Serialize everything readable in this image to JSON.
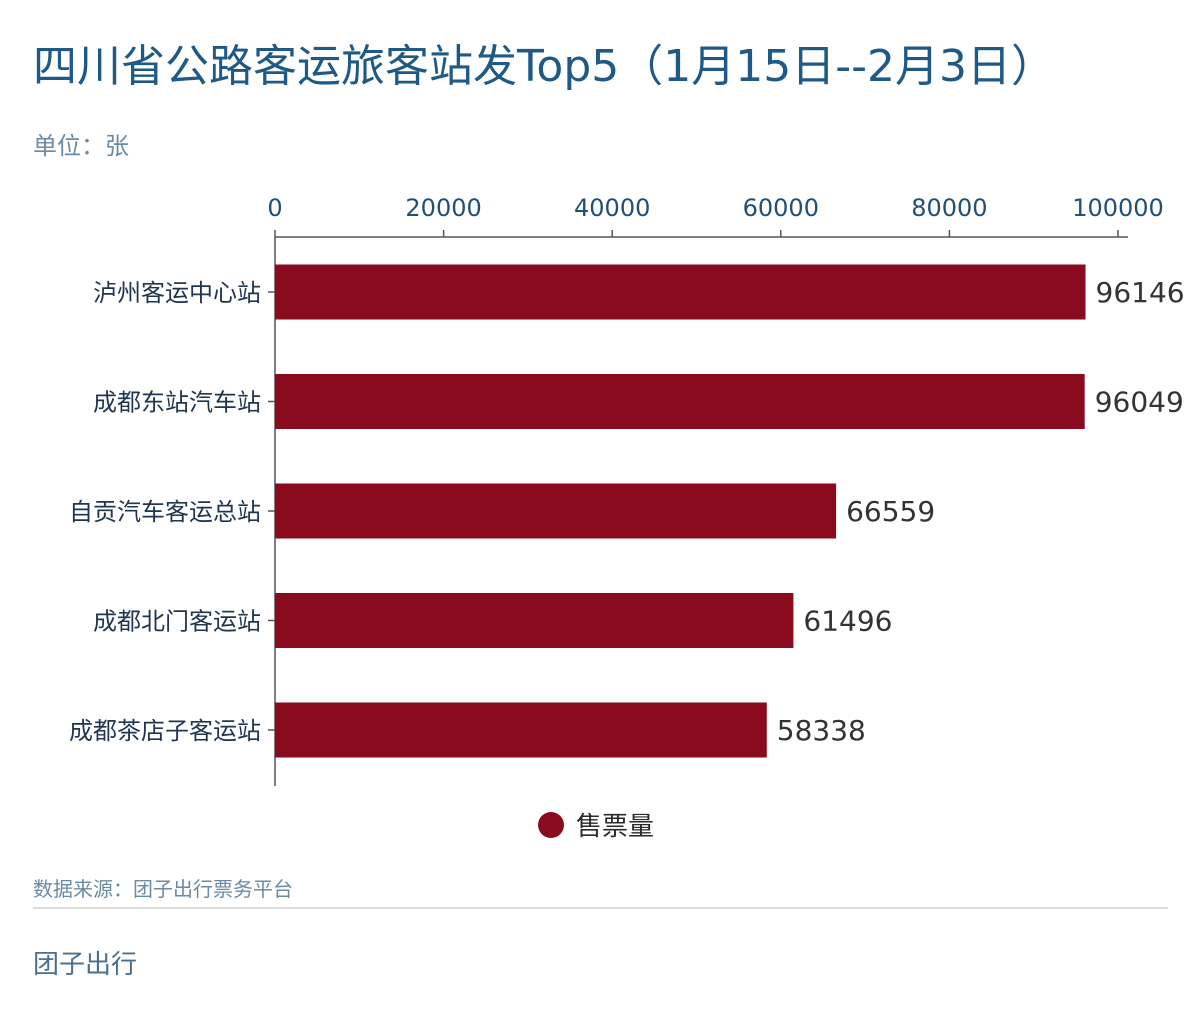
{
  "chart_data": {
    "type": "bar",
    "orientation": "horizontal",
    "title": "四川省公路客运旅客站发Top5（1月15日--2月3日）",
    "subtitle": "单位：张",
    "categories": [
      "泸州客运中心站",
      "成都东站汽车站",
      "自贡汽车客运总站",
      "成都北门客运站",
      "成都茶店子客运站"
    ],
    "series": [
      {
        "name": "售票量",
        "values": [
          96146,
          96049,
          66559,
          61496,
          58338
        ],
        "color": "#8a0a1e"
      }
    ],
    "xlim": [
      0,
      100000
    ],
    "xticks": [
      "0",
      "20000",
      "40000",
      "60000",
      "80000",
      "100000"
    ],
    "axis_position": "top",
    "grid": false,
    "legend": "bottom-center"
  },
  "footer": {
    "source": "数据来源：团子出行票务平台",
    "brand": "团子出行"
  }
}
